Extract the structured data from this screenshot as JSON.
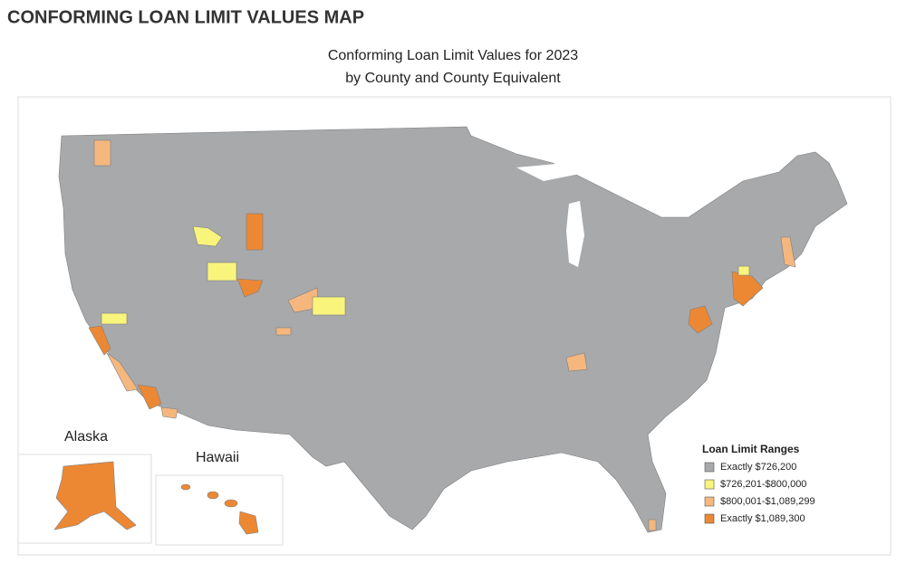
{
  "header": {
    "title": "CONFORMING LOAN LIMIT VALUES MAP"
  },
  "map": {
    "title": [
      "Conforming Loan Limit Values for 2023",
      "by County and County Equivalent"
    ],
    "insets": [
      "Alaska",
      "Hawaii"
    ],
    "legend": {
      "title": "Loan Limit Ranges",
      "items": [
        {
          "label": "Exactly $726,200",
          "color": "#a8a9ab"
        },
        {
          "label": "$726,201-$800,000",
          "color": "#f9f47c"
        },
        {
          "label": "$800,001-$1,089,299",
          "color": "#f5b77e"
        },
        {
          "label": "Exactly $1,089,300",
          "color": "#ec8833"
        }
      ]
    }
  }
}
